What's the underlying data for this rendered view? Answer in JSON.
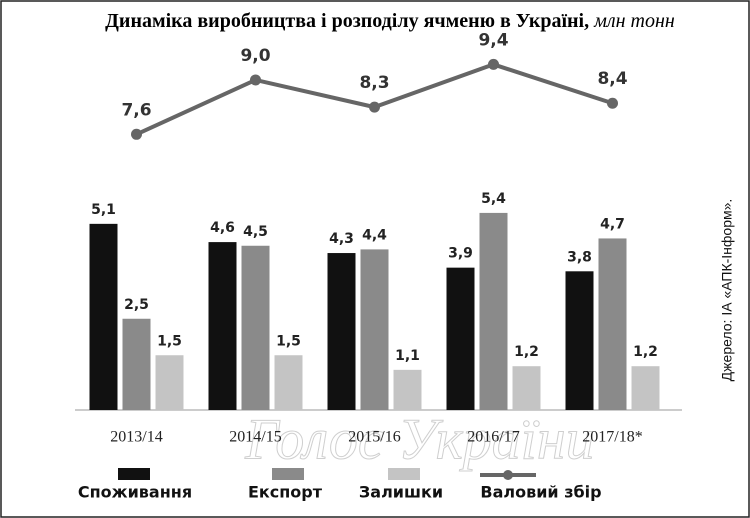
{
  "chart_data": {
    "type": "bar+line",
    "title": "Динаміка виробництва і розподілу ячменю в Україні,",
    "unit": "млн тонн",
    "source": "Джерело: ІА «АПК-Інформ».",
    "watermark": "Голос України",
    "categories": [
      "2013/14",
      "2014/15",
      "2015/16",
      "2016/17",
      "2017/18*"
    ],
    "ylim": [
      0,
      10
    ],
    "y2lim": [
      0.5,
      9.9
    ],
    "series": [
      {
        "name": "Споживання",
        "type": "bar",
        "color": "#111111",
        "values": [
          5.1,
          4.6,
          4.3,
          3.9,
          3.8
        ],
        "value_labels": [
          "5,1",
          "4,6",
          "4,3",
          "3,9",
          "3,8"
        ]
      },
      {
        "name": "Експорт",
        "type": "bar",
        "color": "#8a8a8a",
        "values": [
          2.5,
          4.5,
          4.4,
          5.4,
          4.7
        ],
        "value_labels": [
          "2,5",
          "4,5",
          "4,4",
          "5,4",
          "4,7"
        ]
      },
      {
        "name": "Залишки",
        "type": "bar",
        "color": "#c4c4c4",
        "values": [
          1.5,
          1.5,
          1.1,
          1.2,
          1.2
        ],
        "value_labels": [
          "1,5",
          "1,5",
          "1,1",
          "1,2",
          "1,2"
        ]
      },
      {
        "name": "Валовий збір",
        "type": "line",
        "axis": "y2",
        "color": "#666666",
        "values": [
          7.6,
          9.0,
          8.3,
          9.4,
          8.4
        ],
        "value_labels": [
          "7,6",
          "9,0",
          "8,3",
          "9,4",
          "8,4"
        ]
      }
    ]
  }
}
